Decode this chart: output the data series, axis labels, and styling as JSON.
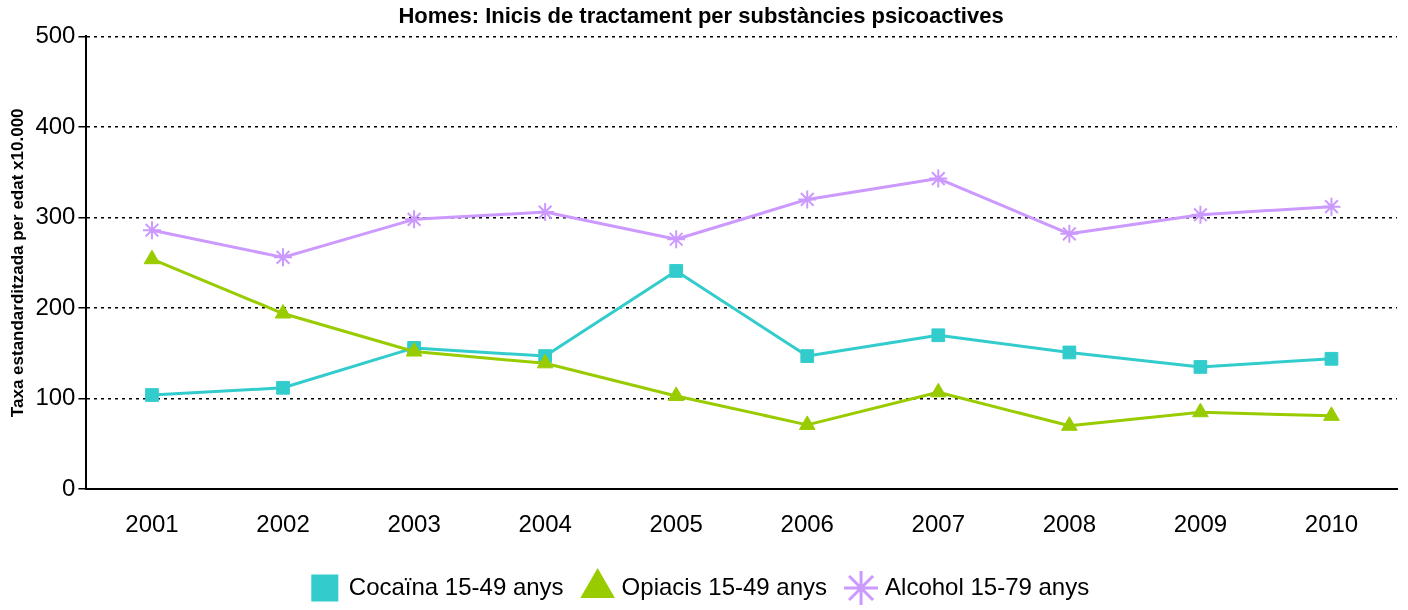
{
  "chart_data": {
    "type": "line",
    "title": "Homes: Inicis de tractament per substàncies psicoactives",
    "ylabel": "Taxa estandarditzada per edat x10.000",
    "categories": [
      "2001",
      "2002",
      "2003",
      "2004",
      "2005",
      "2006",
      "2007",
      "2008",
      "2009",
      "2010"
    ],
    "series": [
      {
        "name": "Cocaïna 15-49 anys",
        "color": "#33cccc",
        "marker": "square",
        "values": [
          104,
          112,
          156,
          147,
          241,
          147,
          170,
          151,
          135,
          144
        ]
      },
      {
        "name": "Opiacis 15-49 anys",
        "color": "#99cc00",
        "marker": "triangle",
        "values": [
          254,
          194,
          152,
          139,
          103,
          71,
          107,
          70,
          85,
          81
        ]
      },
      {
        "name": "Alcohol 15-79 anys",
        "color": "#cc99ff",
        "marker": "cross",
        "values": [
          286,
          256,
          298,
          306,
          276,
          320,
          343,
          282,
          303,
          312
        ]
      }
    ],
    "ylim": [
      0,
      500
    ],
    "yticks": [
      0,
      100,
      200,
      300,
      400,
      500
    ],
    "grid": "y",
    "legend": "bottom",
    "line_style": "solid"
  }
}
